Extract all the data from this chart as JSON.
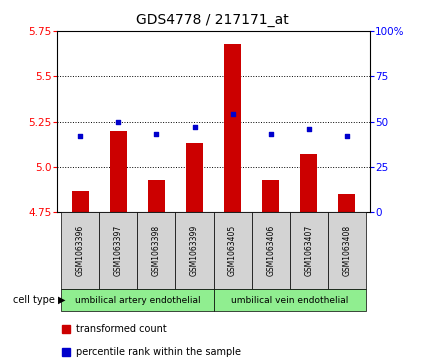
{
  "title": "GDS4778 / 217171_at",
  "samples": [
    "GSM1063396",
    "GSM1063397",
    "GSM1063398",
    "GSM1063399",
    "GSM1063405",
    "GSM1063406",
    "GSM1063407",
    "GSM1063408"
  ],
  "transformed_counts": [
    4.87,
    5.2,
    4.93,
    5.13,
    5.68,
    4.93,
    5.07,
    4.85
  ],
  "percentile_ranks": [
    42,
    50,
    43,
    47,
    54,
    43,
    46,
    42
  ],
  "ylim_left": [
    4.75,
    5.75
  ],
  "ylim_right": [
    0,
    100
  ],
  "yticks_left": [
    4.75,
    5.0,
    5.25,
    5.5,
    5.75
  ],
  "yticks_right": [
    0,
    25,
    50,
    75,
    100
  ],
  "ytick_labels_right": [
    "0",
    "25",
    "50",
    "75",
    "100%"
  ],
  "bar_color": "#cc0000",
  "dot_color": "#0000cc",
  "bar_bottom": 4.75,
  "cell_type_groups": [
    {
      "label": "umbilical artery endothelial",
      "start": 0,
      "end": 4,
      "color": "#90ee90"
    },
    {
      "label": "umbilical vein endothelial",
      "start": 4,
      "end": 8,
      "color": "#90ee90"
    }
  ],
  "cell_type_label": "cell type",
  "legend_bar_label": "transformed count",
  "legend_dot_label": "percentile rank within the sample",
  "background_color": "#ffffff",
  "plot_bg_color": "#ffffff",
  "hline_values": [
    5.0,
    5.25,
    5.5
  ],
  "title_fontsize": 10,
  "tick_fontsize": 7.5,
  "sample_fontsize": 5.5,
  "celltype_fontsize": 6.5,
  "legend_fontsize": 7
}
